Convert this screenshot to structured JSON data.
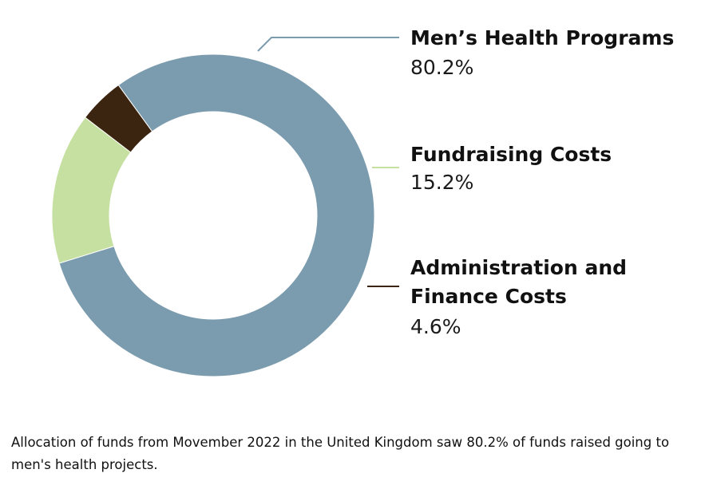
{
  "chart_data": {
    "type": "pie",
    "categories": [
      "Men’s Health Programs",
      "Fundraising Costs",
      "Administration and Finance Costs"
    ],
    "label_lines": [
      [
        "Men’s Health Programs"
      ],
      [
        "Fundraising Costs"
      ],
      [
        "Administration and",
        "Finance Costs"
      ]
    ],
    "values": [
      80.2,
      15.2,
      4.6
    ],
    "value_labels": [
      "80.2%",
      "15.2%",
      "4.6%"
    ],
    "colors": [
      "#7b9cae",
      "#c5e0a0",
      "#3b2510"
    ],
    "legend": "right",
    "grid": false
  },
  "caption": "Allocation of funds from Movember 2022 in the United Kingdom saw 80.2% of funds raised going to men's health projects."
}
